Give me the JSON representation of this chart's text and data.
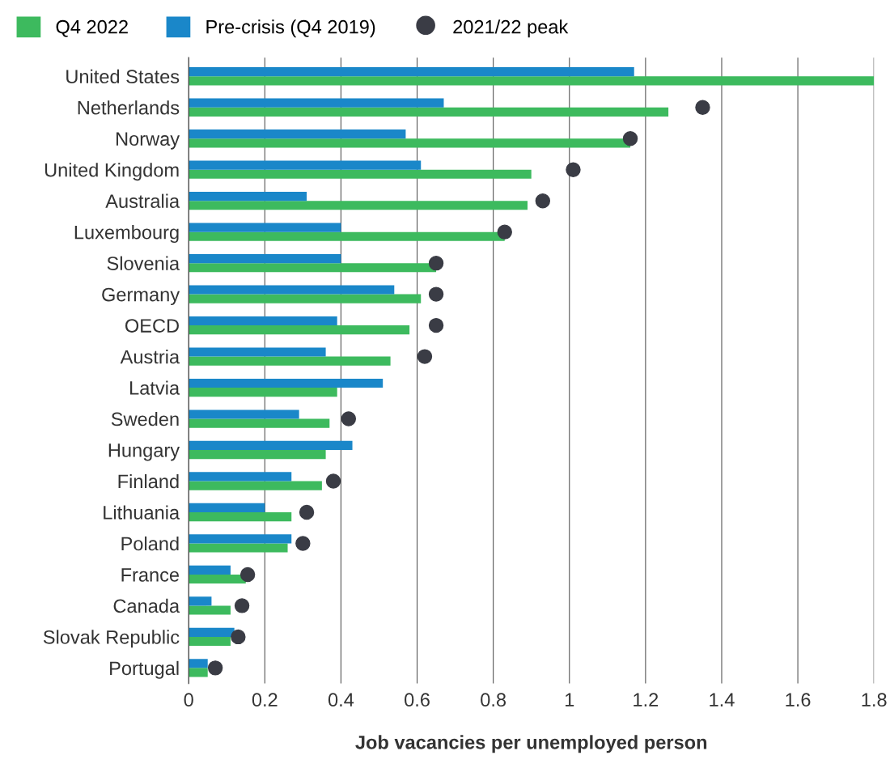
{
  "chart_data": {
    "type": "bar",
    "orientation": "horizontal",
    "xlabel": "Job vacancies per unemployed person",
    "categories": [
      "United States",
      "Netherlands",
      "Norway",
      "United Kingdom",
      "Australia",
      "Luxembourg",
      "Slovenia",
      "Germany",
      "OECD",
      "Austria",
      "Latvia",
      "Sweden",
      "Hungary",
      "Finland",
      "Lithuania",
      "Poland",
      "France",
      "Canada",
      "Slovak Republic",
      "Portugal"
    ],
    "series": [
      {
        "name": "Q4 2022",
        "color": "#3dba5e",
        "values": [
          1.8,
          1.26,
          1.16,
          0.9,
          0.89,
          0.83,
          0.65,
          0.61,
          0.58,
          0.53,
          0.39,
          0.37,
          0.36,
          0.35,
          0.27,
          0.26,
          0.15,
          0.11,
          0.11,
          0.05
        ]
      },
      {
        "name": "Pre-crisis (Q4 2019)",
        "color": "#1a87c9",
        "values": [
          1.17,
          0.67,
          0.57,
          0.61,
          0.31,
          0.4,
          0.4,
          0.54,
          0.39,
          0.36,
          0.51,
          0.29,
          0.43,
          0.27,
          0.2,
          0.27,
          0.11,
          0.06,
          0.12,
          0.05
        ]
      },
      {
        "name": "2021/22 peak",
        "type": "scatter",
        "color": "#3a3c45",
        "values": [
          null,
          1.35,
          1.16,
          1.01,
          0.93,
          0.83,
          0.65,
          0.65,
          0.65,
          0.62,
          null,
          0.42,
          null,
          0.38,
          0.31,
          0.3,
          0.155,
          0.14,
          0.13,
          0.07
        ]
      }
    ],
    "xlim": [
      0,
      1.8
    ],
    "xticks": [
      0,
      0.2,
      0.4,
      0.6,
      0.8,
      1,
      1.2,
      1.4,
      1.6,
      1.8
    ],
    "grid": "x",
    "legend": "top left",
    "marker": "circle"
  }
}
